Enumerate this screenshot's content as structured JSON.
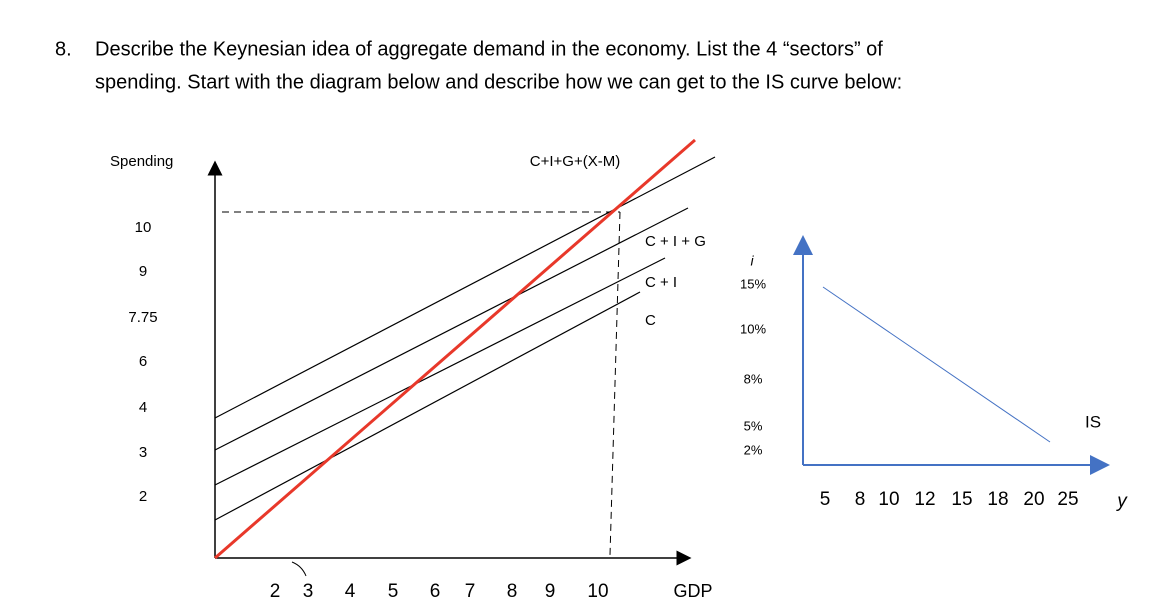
{
  "question": {
    "number": "8.",
    "lines": [
      "Describe the Keynesian idea of aggregate demand in the economy.  List the 4 “sectors” of",
      "spending. Start with the diagram below and describe how we can get to the IS curve below:"
    ]
  },
  "left_diagram": {
    "y_label": "Spending",
    "y_tick_labels": [
      "10",
      "9",
      "7.75",
      "6",
      "4",
      "3",
      "2"
    ],
    "x_tick_labels": [
      "2",
      "3",
      "4",
      "5",
      "6",
      "7",
      "8",
      "9",
      "10"
    ],
    "x_label": "GDP",
    "line_labels": [
      "C+I+G+(X-M)",
      "C + I + G",
      "C + I",
      "C"
    ]
  },
  "right_diagram": {
    "y_label": "i",
    "y_tick_labels": [
      "15%",
      "10%",
      "8%",
      "5%",
      "2%"
    ],
    "curve_label": "IS",
    "x_tick_labels": [
      "5",
      "8",
      "10",
      "12",
      "15",
      "18",
      "20",
      "25"
    ],
    "x_label": "y"
  }
}
